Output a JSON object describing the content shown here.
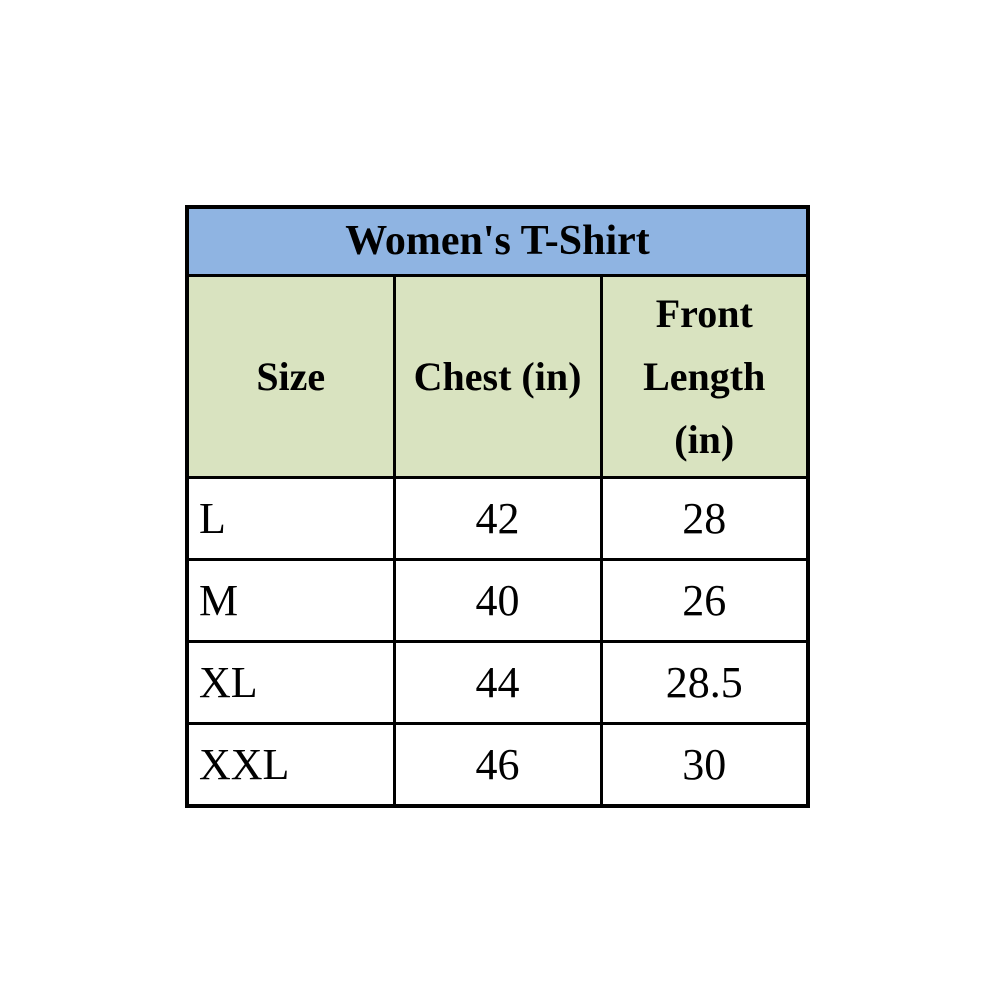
{
  "table": {
    "title": "Women's T-Shirt",
    "columns": [
      {
        "label": "Size"
      },
      {
        "label": "Chest (in)"
      },
      {
        "label": "Front Length (in)"
      }
    ],
    "rows": [
      {
        "size": "L",
        "chest": "42",
        "front_length": "28"
      },
      {
        "size": "M",
        "chest": "40",
        "front_length": "26"
      },
      {
        "size": "XL",
        "chest": "44",
        "front_length": "28.5"
      },
      {
        "size": "XXL",
        "chest": "46",
        "front_length": "30"
      }
    ],
    "colors": {
      "title_bg": "#8FB4E2",
      "header_bg": "#D9E3C0",
      "border": "#000000",
      "text": "#000000"
    }
  },
  "chart_data": {
    "type": "table",
    "title": "Women's T-Shirt",
    "columns": [
      "Size",
      "Chest (in)",
      "Front Length (in)"
    ],
    "rows": [
      [
        "L",
        42,
        28
      ],
      [
        "M",
        40,
        26
      ],
      [
        "XL",
        44,
        28.5
      ],
      [
        "XXL",
        46,
        30
      ]
    ]
  }
}
